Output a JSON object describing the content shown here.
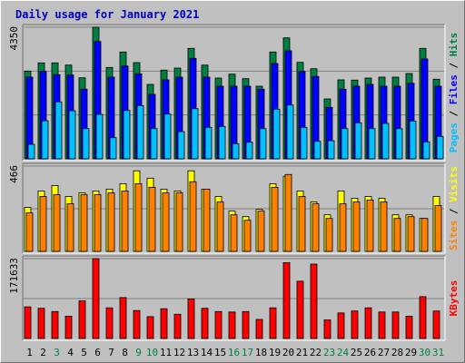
{
  "chart_data": {
    "type": "bar",
    "title": "Daily usage for January 2021",
    "categories": [
      "1",
      "2",
      "3",
      "4",
      "5",
      "6",
      "7",
      "8",
      "9",
      "10",
      "11",
      "12",
      "13",
      "14",
      "15",
      "16",
      "17",
      "18",
      "19",
      "20",
      "21",
      "22",
      "23",
      "24",
      "25",
      "26",
      "27",
      "28",
      "29",
      "30",
      "31"
    ],
    "weekend_days": [
      "3",
      "9",
      "10",
      "16",
      "17",
      "23",
      "24",
      "30",
      "31"
    ],
    "panels": [
      {
        "id": "hits",
        "max_label": "4350",
        "ymax": 4350,
        "label_parts": [
          {
            "text": "Pages",
            "color": "#00c0ff"
          },
          {
            "text": " / ",
            "color": "#000000"
          },
          {
            "text": "Files",
            "color": "#0000ff"
          },
          {
            "text": " / ",
            "color": "#000000"
          },
          {
            "text": "Hits",
            "color": "#008040"
          }
        ],
        "series": [
          {
            "name": "Hits",
            "color": "#008040",
            "values": [
              2900,
              3170,
              3170,
              3100,
              2680,
              4350,
              3020,
              3530,
              3180,
              2460,
              2930,
              3000,
              3650,
              3100,
              2670,
              2800,
              2650,
              2400,
              3530,
              4000,
              3190,
              2980,
              1980,
              2610,
              2600,
              2670,
              2700,
              2700,
              2820,
              3650,
              2630
            ]
          },
          {
            "name": "Files",
            "color": "#0000ff",
            "values": [
              2700,
              2890,
              2780,
              2770,
              2300,
              3880,
              2700,
              3070,
              2810,
              2130,
              2610,
              2700,
              3320,
              2700,
              2400,
              2400,
              2400,
              2300,
              3150,
              3570,
              2890,
              2720,
              1700,
              2300,
              2400,
              2460,
              2400,
              2400,
              2500,
              3300,
              2400
            ]
          },
          {
            "name": "Pages",
            "color": "#00c0ff",
            "values": [
              480,
              1260,
              1880,
              1590,
              1000,
              1470,
              700,
              1600,
              1760,
              1000,
              1480,
              900,
              1660,
              1040,
              1070,
              500,
              550,
              1000,
              1640,
              1780,
              1040,
              580,
              600,
              1000,
              1190,
              1000,
              1170,
              1000,
              1250,
              560,
              740
            ]
          }
        ]
      },
      {
        "id": "visits",
        "max_label": "466",
        "ymax": 466,
        "label_parts": [
          {
            "text": "Sites",
            "color": "#ff8000"
          },
          {
            "text": " / ",
            "color": "#000000"
          },
          {
            "text": "Visits",
            "color": "#ffff00"
          }
        ],
        "series": [
          {
            "name": "Visits",
            "color": "#ffff00",
            "values": [
              240,
              330,
              360,
              300,
              320,
              330,
              340,
              370,
              440,
              400,
              340,
              330,
              440,
              340,
              300,
              220,
              190,
              230,
              370,
              410,
              330,
              270,
              200,
              330,
              290,
              300,
              290,
              200,
              200,
              180,
              300
            ]
          },
          {
            "name": "Sites",
            "color": "#ff8000",
            "values": [
              210,
              300,
              310,
              260,
              310,
              310,
              320,
              330,
              370,
              350,
              320,
              320,
              380,
              340,
              270,
              200,
              170,
              220,
              350,
              420,
              300,
              260,
              180,
              260,
              270,
              280,
              270,
              180,
              190,
              180,
              250
            ]
          }
        ]
      },
      {
        "id": "kbytes",
        "max_label": "171633",
        "ymax": 171633,
        "label_parts": [
          {
            "text": "KBytes",
            "color": "#ff0000"
          }
        ],
        "series": [
          {
            "name": "KBytes",
            "color": "#ff0000",
            "values": [
              68000,
              65000,
              58000,
              48000,
              81000,
              171633,
              66000,
              88000,
              60000,
              47000,
              64000,
              52000,
              85000,
              65000,
              58000,
              57000,
              58000,
              41000,
              66000,
              163000,
              123000,
              160000,
              40000,
              55000,
              59000,
              66000,
              57000,
              57000,
              48000,
              90000,
              59000
            ]
          }
        ]
      }
    ]
  }
}
